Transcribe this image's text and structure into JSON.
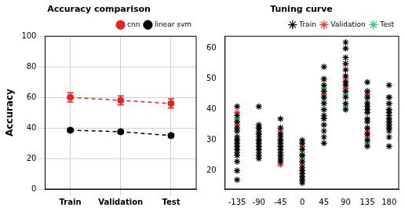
{
  "chart_data": [
    {
      "type": "line",
      "title": "Accuracy comparison",
      "y_label": "Accuracy",
      "categories": [
        "Train",
        "Validation",
        "Test"
      ],
      "series": [
        {
          "name": "cnn",
          "color": "#e8221f",
          "values": [
            60,
            58,
            56
          ],
          "errors": [
            3,
            3,
            3
          ],
          "marker": "circle",
          "line_style": "dashed"
        },
        {
          "name": "linear svm",
          "color": "#000000",
          "values": [
            38.5,
            37.5,
            35
          ],
          "errors": [
            1,
            1,
            1
          ],
          "marker": "circle",
          "line_style": "dashed"
        }
      ],
      "ylim": [
        0,
        100
      ],
      "yticks": [
        0,
        20,
        40,
        60,
        80,
        100
      ],
      "grid": true,
      "legend": "upper right"
    },
    {
      "type": "scatter",
      "title": "Tuning curve",
      "series": [
        {
          "name": "Train",
          "color": "#000000",
          "marker": "star",
          "x": [
            -135,
            -135,
            -135,
            -135,
            -135,
            -135,
            -135,
            -135,
            -135,
            -135,
            -135,
            -135,
            -135,
            -135,
            -135,
            -90,
            -90,
            -90,
            -90,
            -90,
            -90,
            -90,
            -90,
            -90,
            -90,
            -90,
            -90,
            -90,
            -45,
            -45,
            -45,
            -45,
            -45,
            -45,
            -45,
            -45,
            -45,
            -45,
            -45,
            -45,
            0,
            0,
            0,
            0,
            0,
            0,
            0,
            0,
            0,
            0,
            0,
            45,
            45,
            45,
            45,
            45,
            45,
            45,
            45,
            45,
            45,
            45,
            45,
            45,
            90,
            90,
            90,
            90,
            90,
            90,
            90,
            90,
            90,
            90,
            90,
            90,
            135,
            135,
            135,
            135,
            135,
            135,
            135,
            135,
            135,
            135,
            135,
            135,
            135,
            180,
            180,
            180,
            180,
            180,
            180,
            180,
            180,
            180,
            180,
            180,
            180,
            180
          ],
          "values": [
            41,
            38,
            36,
            34,
            33,
            31,
            30,
            29,
            28,
            27,
            26,
            25,
            23,
            20,
            17,
            41,
            35,
            34,
            33,
            32,
            31,
            30,
            29,
            28,
            27,
            26,
            25,
            24,
            37,
            34,
            32,
            31,
            30,
            29,
            28,
            27,
            26,
            25,
            24,
            23,
            30,
            29,
            27,
            25,
            23,
            21,
            20,
            19,
            18,
            17,
            16,
            54,
            50,
            48,
            46,
            44,
            42,
            40,
            38,
            37,
            35,
            33,
            31,
            29,
            62,
            60,
            57,
            55,
            53,
            51,
            49,
            48,
            46,
            44,
            42,
            40,
            49,
            46,
            44,
            42,
            41,
            40,
            39,
            37,
            36,
            34,
            32,
            30,
            28,
            48,
            44,
            42,
            40,
            39,
            38,
            37,
            36,
            35,
            34,
            33,
            31,
            28
          ]
        },
        {
          "name": "Validation",
          "color": "#ff2a2a",
          "marker": "star",
          "x": [
            -135,
            -135,
            -135,
            -90,
            -90,
            -45,
            -45,
            -45,
            0,
            0,
            0,
            45,
            45,
            45,
            90,
            90,
            90,
            135,
            135,
            135,
            180,
            180,
            180
          ],
          "values": [
            39,
            35,
            33,
            34,
            30,
            33,
            28,
            22,
            28,
            25,
            22,
            50,
            45,
            38,
            55,
            50,
            47,
            45,
            33,
            31,
            44,
            40,
            36
          ]
        },
        {
          "name": "Test",
          "color": "#22cc66",
          "marker": "star",
          "x": [
            -135,
            -135,
            -90,
            -90,
            -45,
            -45,
            0,
            0,
            45,
            45,
            90,
            90,
            135,
            135,
            180,
            180
          ],
          "values": [
            37,
            31,
            32,
            28,
            30,
            26,
            26,
            24,
            47,
            43,
            45,
            41,
            43,
            29,
            42,
            34
          ]
        }
      ],
      "xlim": [
        -160,
        200
      ],
      "xticks": [
        -135,
        -90,
        -45,
        0,
        45,
        90,
        135,
        180
      ],
      "ylim": [
        14,
        64
      ],
      "yticks": [
        20,
        30,
        40,
        50,
        60
      ],
      "grid": false,
      "legend": "upper right"
    }
  ]
}
